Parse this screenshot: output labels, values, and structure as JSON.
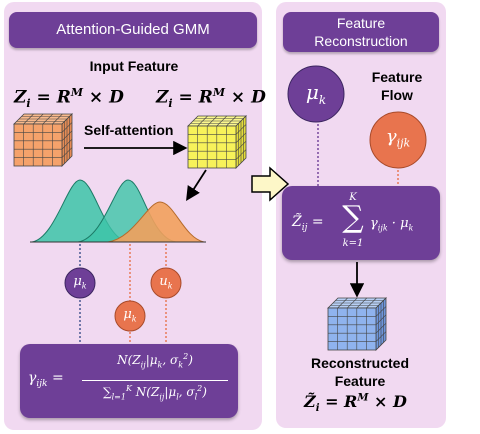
{
  "left": {
    "title": "Attention-Guided GMM",
    "input_feature_label": "Input Feature",
    "z_eq_left": "Z_i = R^M × D",
    "z_eq_right": "Z_i = R^M × D",
    "self_attention_label": "Self-attention",
    "mu_k_label": "μ_k",
    "u_k_label": "u_k",
    "mu_k_lower_label": "μ_k",
    "gamma_formula": "γ_ijk = N(Z_ij|μ_k, σ_k²) / Σ_{l=1}^{K} N(Z_ij|μ_l, σ_l²)"
  },
  "right": {
    "title_line1": "Feature",
    "title_line2": "Reconstruction",
    "feature_flow_line1": "Feature",
    "feature_flow_line2": "Flow",
    "mu_k_label": "μ_k",
    "gamma_label": "γ_ijk",
    "recon_formula": "Z̃_ij = Σ_{k=1}^{K} γ_ijk · μ_k",
    "reconstructed_line1": "Reconstructed",
    "reconstructed_line2": "Feature",
    "z_tilde_eq": "Z̃_i = R^M × D"
  },
  "colors": {
    "panel_bg": "#f1d9f1",
    "header_purple": "#6e3f97",
    "cube_orange": "#f5a26b",
    "cube_yellow": "#f7f25a",
    "cube_blue": "#8fb3ee",
    "gauss_teal": "#3cc4a8",
    "gauss_orange": "#f2a05c",
    "circle_purple": "#6e3f97",
    "circle_orange": "#e8744e",
    "arrow_fill": "#fdf7c8"
  }
}
